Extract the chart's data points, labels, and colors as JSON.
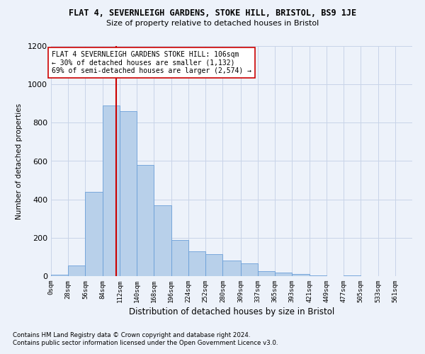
{
  "title": "FLAT 4, SEVERNLEIGH GARDENS, STOKE HILL, BRISTOL, BS9 1JE",
  "subtitle": "Size of property relative to detached houses in Bristol",
  "xlabel": "Distribution of detached houses by size in Bristol",
  "ylabel": "Number of detached properties",
  "footnote1": "Contains HM Land Registry data © Crown copyright and database right 2024.",
  "footnote2": "Contains public sector information licensed under the Open Government Licence v3.0.",
  "annotation_line1": "FLAT 4 SEVERNLEIGH GARDENS STOKE HILL: 106sqm",
  "annotation_line2": "← 30% of detached houses are smaller (1,132)",
  "annotation_line3": "69% of semi-detached houses are larger (2,574) →",
  "property_size": 106,
  "bin_edges": [
    0,
    28,
    56,
    84,
    112,
    140,
    168,
    196,
    224,
    252,
    280,
    309,
    337,
    365,
    393,
    421,
    449,
    477,
    505,
    533,
    561
  ],
  "bin_labels": [
    "0sqm",
    "28sqm",
    "56sqm",
    "84sqm",
    "112sqm",
    "140sqm",
    "168sqm",
    "196sqm",
    "224sqm",
    "252sqm",
    "280sqm",
    "309sqm",
    "337sqm",
    "365sqm",
    "393sqm",
    "421sqm",
    "449sqm",
    "477sqm",
    "505sqm",
    "533sqm",
    "561sqm"
  ],
  "bar_heights": [
    8,
    55,
    440,
    890,
    860,
    580,
    370,
    190,
    130,
    115,
    80,
    65,
    25,
    20,
    10,
    5,
    0,
    5,
    0,
    0
  ],
  "bar_color": "#b8d0ea",
  "bar_edge_color": "#6a9fd8",
  "vline_color": "#cc0000",
  "grid_color": "#c8d4e8",
  "background_color": "#edf2fa",
  "box_color": "#ffffff",
  "ylim": [
    0,
    1200
  ],
  "yticks": [
    0,
    200,
    400,
    600,
    800,
    1000,
    1200
  ]
}
